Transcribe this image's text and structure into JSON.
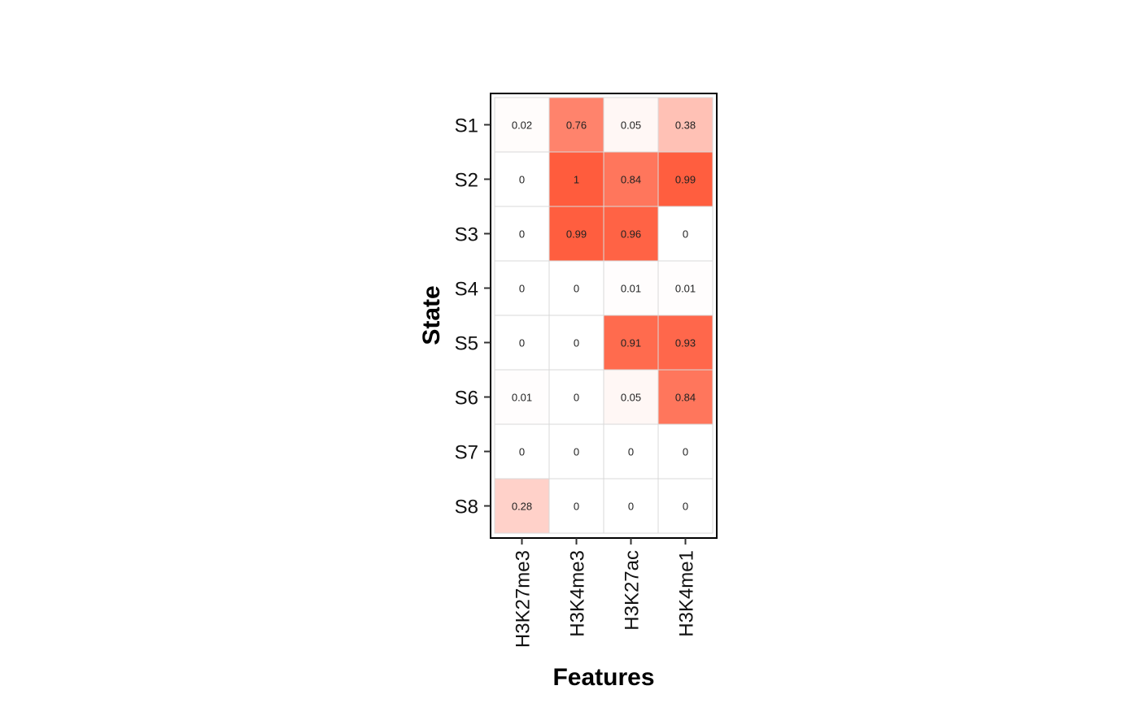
{
  "chart_data": {
    "type": "heatmap",
    "title": "",
    "xlabel": "Features",
    "ylabel": "State",
    "x_categories": [
      "H3K27me3",
      "H3K4me3",
      "H3K27ac",
      "H3K4me1"
    ],
    "y_categories": [
      "S1",
      "S2",
      "S3",
      "S4",
      "S5",
      "S6",
      "S7",
      "S8"
    ],
    "values": [
      [
        0.02,
        0.76,
        0.05,
        0.38
      ],
      [
        0,
        1,
        0.84,
        0.99
      ],
      [
        0,
        0.99,
        0.96,
        0
      ],
      [
        0,
        0,
        0.01,
        0.01
      ],
      [
        0,
        0,
        0.91,
        0.93
      ],
      [
        0.01,
        0,
        0.05,
        0.84
      ],
      [
        0,
        0,
        0,
        0
      ],
      [
        0.28,
        0,
        0,
        0
      ]
    ],
    "value_range": [
      0,
      1
    ],
    "color_low": "#ffffff",
    "color_high": "#ff5c3d",
    "cell_border_color": "#d9d9d9",
    "grid": false,
    "legend": "none"
  }
}
